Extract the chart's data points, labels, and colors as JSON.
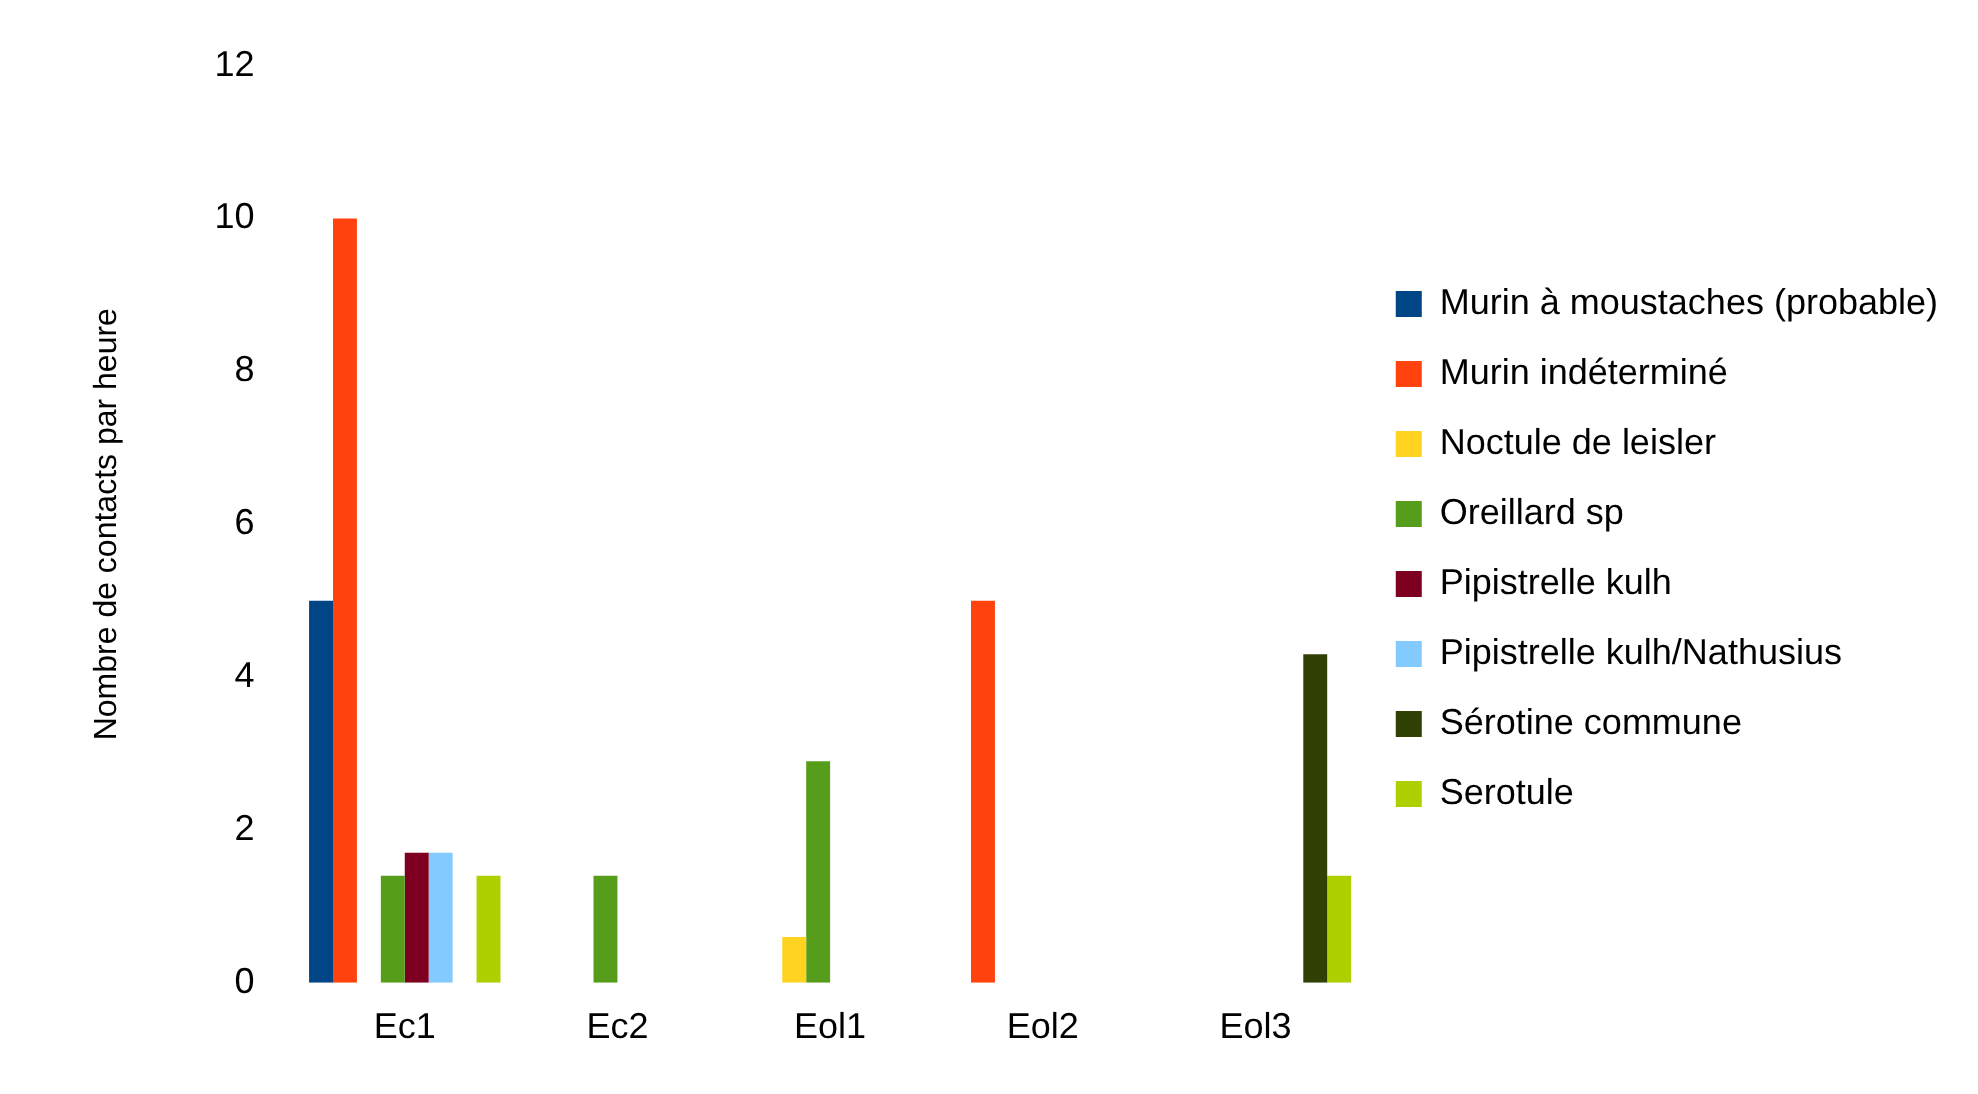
{
  "chart_data": {
    "type": "bar",
    "ylabel": "Nombre de contacts par heure",
    "categories": [
      "Ec1",
      "Ec2",
      "Eol1",
      "Eol2",
      "Eol3"
    ],
    "ylim": [
      0,
      12
    ],
    "yticks": [
      0,
      2,
      4,
      6,
      8,
      10,
      12
    ],
    "grid": false,
    "legend": "right",
    "series": [
      {
        "name": "Murin à moustaches (probable)",
        "color": "#004586",
        "values": [
          5,
          null,
          null,
          null,
          null
        ]
      },
      {
        "name": "Murin indéterminé",
        "color": "#ff420e",
        "values": [
          10,
          null,
          null,
          5,
          null
        ]
      },
      {
        "name": "Noctule de leisler",
        "color": "#ffd320",
        "values": [
          null,
          null,
          0.6,
          null,
          null
        ]
      },
      {
        "name": "Oreillard sp",
        "color": "#579d1c",
        "values": [
          1.4,
          1.4,
          2.9,
          null,
          null
        ]
      },
      {
        "name": "Pipistrelle kulh",
        "color": "#7e0021",
        "values": [
          1.7,
          null,
          null,
          null,
          null
        ]
      },
      {
        "name": "Pipistrelle kulh/Nathusius",
        "color": "#83caff",
        "values": [
          1.7,
          null,
          null,
          null,
          null
        ]
      },
      {
        "name": "Sérotine commune",
        "color": "#314004",
        "values": [
          null,
          null,
          null,
          null,
          4.3
        ]
      },
      {
        "name": "Serotule",
        "color": "#aecf00",
        "values": [
          1.4,
          null,
          null,
          null,
          1.4
        ]
      }
    ]
  }
}
